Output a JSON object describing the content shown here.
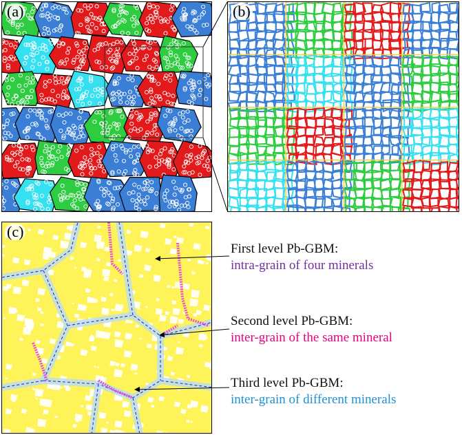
{
  "panels": {
    "a": {
      "tag": "(a)"
    },
    "b": {
      "tag": "(b)"
    },
    "c": {
      "tag": "(c)"
    }
  },
  "annotations": [
    {
      "level": "First level Pb-GBM:",
      "description": "intra-grain of four minerals",
      "color": "#7030a0"
    },
    {
      "level": "Second level Pb-GBM:",
      "description": "inter-grain of the same mineral",
      "color": "#e6007e"
    },
    {
      "level": "Third level Pb-GBM:",
      "description": "inter-grain of different minerals",
      "color": "#1f8fd6"
    }
  ],
  "colors": {
    "mineral_red": "#e31a1c",
    "mineral_green": "#2ecc40",
    "mineral_blue": "#3a7fd5",
    "mineral_cyan": "#35e0f0",
    "matrix_yellow": "#fff35a",
    "boundary_magenta": "#e64fd8",
    "boundary_lightblue": "#b9dcf2",
    "boundary_dash": "#2b2bd0"
  }
}
